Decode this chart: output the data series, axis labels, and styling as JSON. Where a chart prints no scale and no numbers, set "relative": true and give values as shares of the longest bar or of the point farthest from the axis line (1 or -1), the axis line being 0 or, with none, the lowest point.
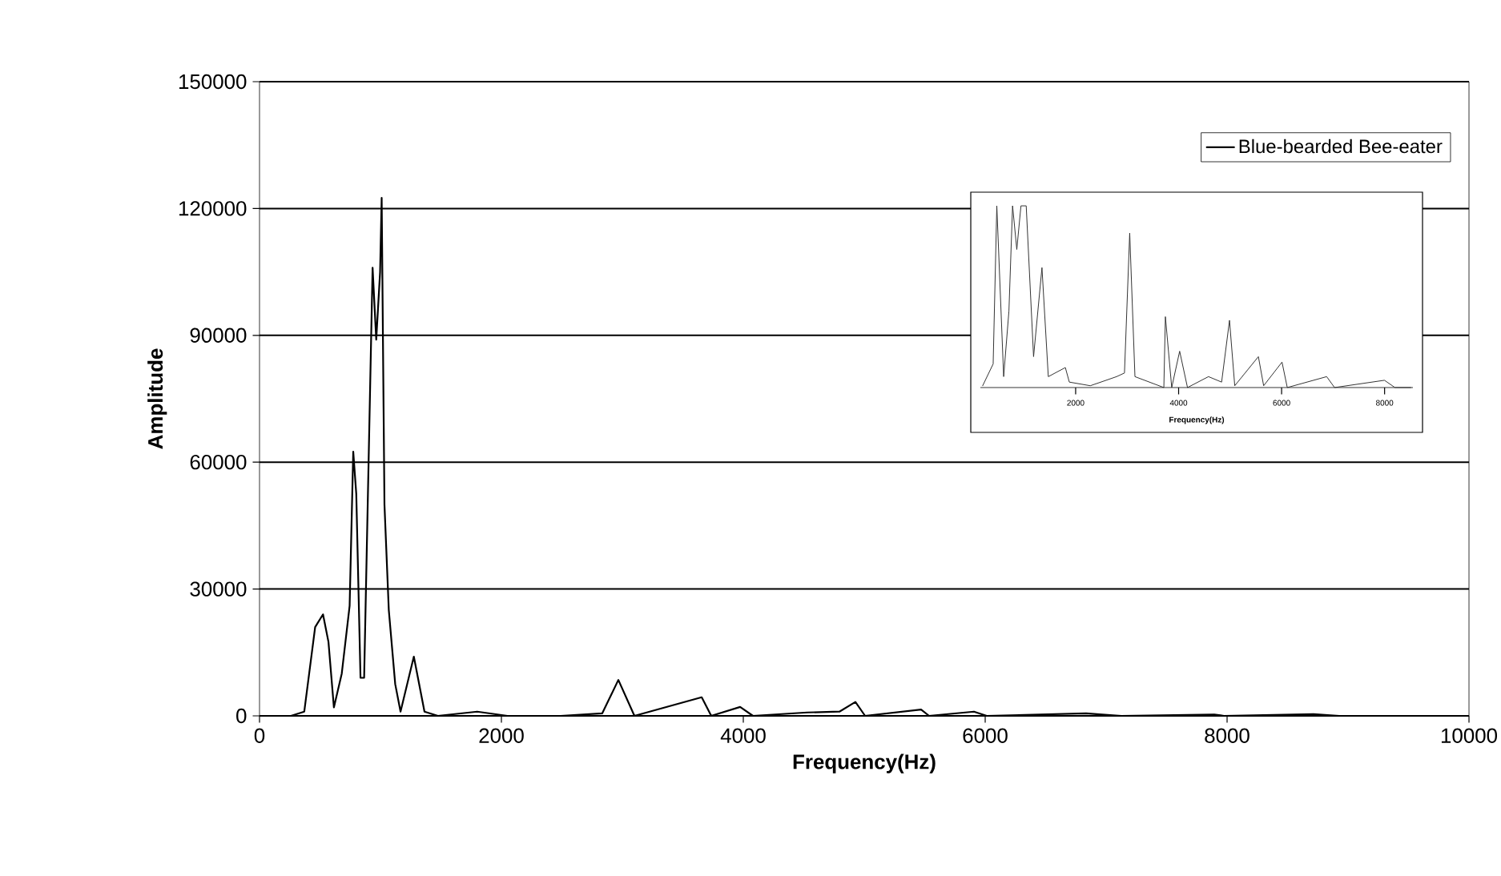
{
  "chart_data": [
    {
      "type": "line",
      "xlabel": "Frequency(Hz)",
      "ylabel": "Amplitude",
      "x": [
        260,
        370,
        460,
        525,
        570,
        615,
        680,
        745,
        775,
        800,
        835,
        865,
        900,
        935,
        965,
        997,
        1010,
        1033,
        1069,
        1122,
        1166,
        1276,
        1364,
        1475,
        1800,
        2050,
        2490,
        2834,
        2967,
        3100,
        3656,
        3735,
        3974,
        4080,
        4530,
        4795,
        4927,
        5007,
        5470,
        5536,
        5907,
        6013,
        6834,
        6967,
        7126,
        7894,
        7974,
        8715,
        8927,
        9800
      ],
      "series": [
        {
          "name": "Blue-bearded Bee-eater",
          "color": "#000000",
          "values": [
            0,
            1000,
            21000,
            24000,
            17500,
            2000,
            10000,
            26000,
            62500,
            52500,
            9000,
            9000,
            57500,
            106000,
            89000,
            105000,
            122500,
            50000,
            25000,
            7500,
            1000,
            14000,
            1000,
            0,
            1000,
            0,
            0,
            600,
            8500,
            0,
            4400,
            0,
            2100,
            0,
            800,
            1000,
            3300,
            0,
            1500,
            0,
            1000,
            0,
            600,
            300,
            0,
            300,
            0,
            400,
            0,
            0
          ]
        }
      ],
      "xlim": [
        0,
        10000
      ],
      "xticks": [
        0,
        2000,
        4000,
        6000,
        8000,
        10000
      ],
      "ylim": [
        0,
        150000
      ],
      "yticks": [
        0,
        30000,
        60000,
        90000,
        120000,
        150000
      ],
      "grid": "y",
      "legend": "top right"
    },
    {
      "type": "line",
      "relative": true,
      "xlabel": "Frequency(Hz)",
      "tick_labels": "x",
      "color": "#333333",
      "x": [
        194,
        398,
        469,
        602,
        704,
        775,
        857,
        938,
        1040,
        1183,
        1346,
        1469,
        1800,
        1877,
        2285,
        2795,
        2948,
        3050,
        3152,
        3713,
        3743,
        3866,
        4020,
        4172,
        4580,
        4835,
        4988,
        5090,
        5549,
        5651,
        6008,
        6110,
        6875,
        7028,
        7997,
        8201,
        8507
      ],
      "values": [
        0.01,
        0.13,
        1,
        0.06,
        0.42,
        1,
        0.76,
        1,
        1,
        0.17,
        0.66,
        0.06,
        0.11,
        0.03,
        0.01,
        0.06,
        0.08,
        0.85,
        0.06,
        0,
        0.39,
        0,
        0.2,
        0,
        0.06,
        0.03,
        0.37,
        0.01,
        0.17,
        0.01,
        0.14,
        0,
        0.06,
        0,
        0.04,
        0,
        0
      ],
      "xlim": [
        150,
        8550
      ],
      "xticks": [
        2000,
        4000,
        6000,
        8000
      ]
    }
  ]
}
